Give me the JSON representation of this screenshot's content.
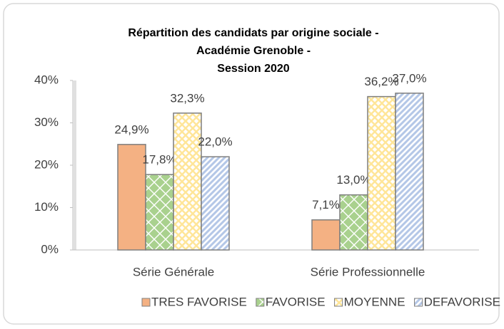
{
  "chart_data": {
    "type": "bar",
    "title": [
      "Répartition des candidats par origine sociale -",
      "Académie Grenoble -",
      "Session 2020"
    ],
    "categories": [
      "Série Générale",
      "Série Professionnelle"
    ],
    "series": [
      {
        "name": "TRES FAVORISE",
        "color": "#f4b183",
        "pattern": "solid",
        "values": [
          24.9,
          7.1
        ],
        "value_labels": [
          "24,9%",
          "7,1%"
        ]
      },
      {
        "name": "FAVORISE",
        "color": "#a9d18e",
        "pattern": "diamond",
        "values": [
          17.8,
          13.0
        ],
        "value_labels": [
          "17,8%",
          "13,0%"
        ]
      },
      {
        "name": "MOYENNE",
        "color": "#ffe699",
        "pattern": "crosshatch",
        "values": [
          32.3,
          36.2
        ],
        "value_labels": [
          "32,3%",
          "36,2%"
        ]
      },
      {
        "name": "DEFAVORISE",
        "color": "#b4c7e7",
        "pattern": "diagonal",
        "values": [
          22.0,
          37.0
        ],
        "value_labels": [
          "22,0%",
          "37,0%"
        ]
      }
    ],
    "ylim": [
      0,
      40
    ],
    "yticks": [
      {
        "value": 0,
        "label": "0%"
      },
      {
        "value": 10,
        "label": "10%"
      },
      {
        "value": 20,
        "label": "20%"
      },
      {
        "value": 30,
        "label": "30%"
      },
      {
        "value": 40,
        "label": "40%"
      }
    ],
    "grid": false,
    "legend": "bottom"
  }
}
